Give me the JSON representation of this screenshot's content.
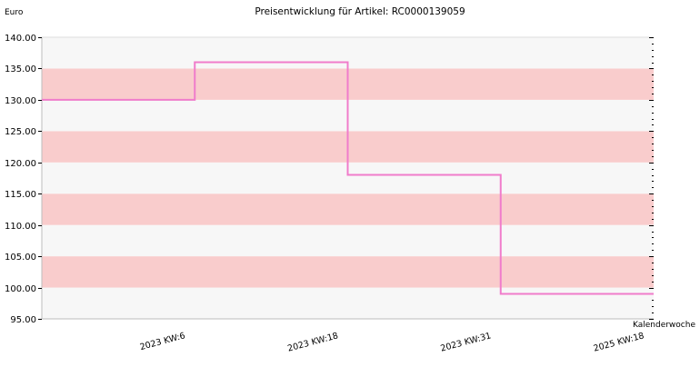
{
  "chart_data": {
    "type": "line",
    "title": "Preisentwicklung für Artikel: RC0000139059",
    "ylabel": "Euro",
    "xlabel": "Kalenderwoche",
    "ylim": [
      95,
      140
    ],
    "yticks": [
      95,
      100,
      105,
      110,
      115,
      120,
      125,
      130,
      135,
      140
    ],
    "ytick_labels": [
      "95.00",
      "100.00",
      "105.00",
      "110.00",
      "115.00",
      "120.00",
      "125.00",
      "130.00",
      "135.00",
      "140.00"
    ],
    "categories": [
      "2023 KW:6",
      "2023 KW:18",
      "2023 KW:31",
      "2025 KW:18"
    ],
    "step": true,
    "series": [
      {
        "values": [
          130,
          136,
          118,
          99
        ],
        "color": "#f07ccb"
      }
    ],
    "band_colors": [
      "#f7f7f7",
      "#f9cccc"
    ],
    "grid": false,
    "legend": "none"
  }
}
